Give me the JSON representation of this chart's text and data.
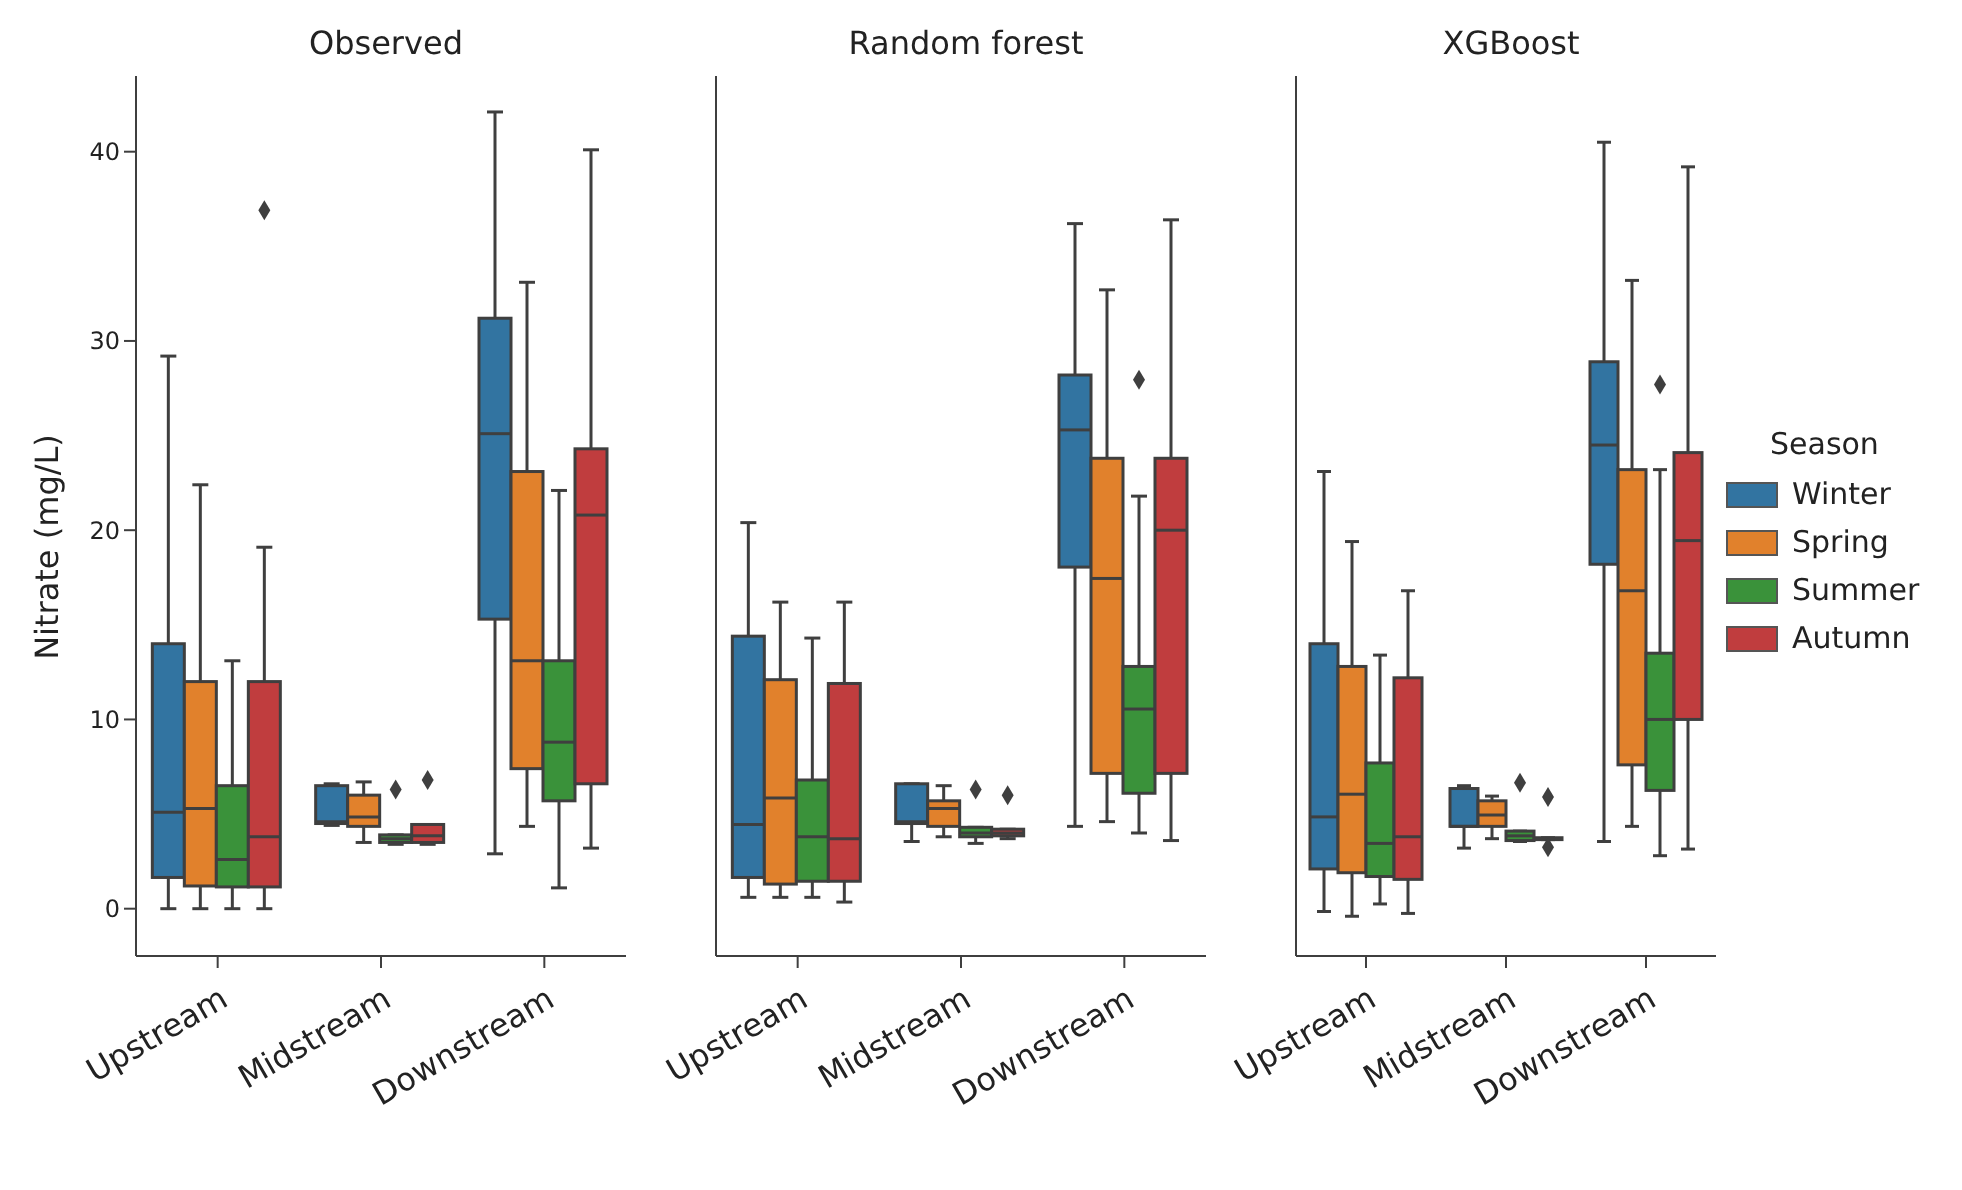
{
  "chart_data": [
    {
      "type": "box",
      "title": "Observed",
      "ylabel": "Nitrate (mg/L)",
      "categories": [
        "Upstream",
        "Midstream",
        "Downstream"
      ],
      "ylim": [
        -2.5,
        44
      ],
      "yticks": [
        0,
        10,
        20,
        30,
        40
      ],
      "series": [
        {
          "color": "#3274a1",
          "boxes": [
            {
              "low": 0,
              "q1": 1.65,
              "median": 5.1,
              "q3": 14,
              "high": 29.2
            },
            {
              "low": 4.4,
              "q1": 4.5,
              "median": 4.6,
              "q3": 6.5,
              "high": 6.6
            },
            {
              "low": 2.9,
              "q1": 15.3,
              "median": 25.1,
              "q3": 31.2,
              "high": 42.1
            }
          ]
        },
        {
          "color": "#e1812c",
          "boxes": [
            {
              "low": 0,
              "q1": 1.2,
              "median": 5.3,
              "q3": 12,
              "high": 22.4
            },
            {
              "low": 3.5,
              "q1": 4.35,
              "median": 4.85,
              "q3": 6,
              "high": 6.7
            },
            {
              "low": 4.35,
              "q1": 7.4,
              "median": 13.1,
              "q3": 23.1,
              "high": 33.1
            }
          ]
        },
        {
          "color": "#3a923a",
          "boxes": [
            {
              "low": 0,
              "q1": 1.15,
              "median": 2.6,
              "q3": 6.5,
              "high": 13.1
            },
            {
              "low": 3.4,
              "q1": 3.5,
              "median": 3.7,
              "q3": 3.9,
              "high": 3.9,
              "outliers": [
                6.3
              ]
            },
            {
              "low": 1.1,
              "q1": 5.7,
              "median": 8.8,
              "q3": 13.1,
              "high": 22.1
            }
          ]
        },
        {
          "color": "#c03d3e",
          "boxes": [
            {
              "low": 0,
              "q1": 1.15,
              "median": 3.8,
              "q3": 12,
              "high": 19.1,
              "outliers": [
                36.9
              ]
            },
            {
              "low": 3.4,
              "q1": 3.5,
              "median": 3.85,
              "q3": 4.45,
              "high": 4.45,
              "outliers": [
                6.8
              ]
            },
            {
              "low": 3.2,
              "q1": 6.6,
              "median": 20.8,
              "q3": 24.3,
              "high": 40.1
            }
          ]
        }
      ]
    },
    {
      "type": "box",
      "title": "Random forest",
      "categories": [
        "Upstream",
        "Midstream",
        "Downstream"
      ],
      "ylim": [
        -2.5,
        44
      ],
      "yticks": [
        0,
        10,
        20,
        30,
        40
      ],
      "tick_labels": "x",
      "series": [
        {
          "color": "#3274a1",
          "boxes": [
            {
              "low": 0.6,
              "q1": 1.65,
              "median": 4.45,
              "q3": 14.4,
              "high": 20.4
            },
            {
              "low": 3.55,
              "q1": 4.5,
              "median": 4.6,
              "q3": 6.6,
              "high": 6.6
            },
            {
              "low": 4.35,
              "q1": 18.05,
              "median": 25.3,
              "q3": 28.2,
              "high": 36.2
            }
          ]
        },
        {
          "color": "#e1812c",
          "boxes": [
            {
              "low": 0.6,
              "q1": 1.3,
              "median": 5.85,
              "q3": 12.1,
              "high": 16.2
            },
            {
              "low": 3.8,
              "q1": 4.35,
              "median": 5.3,
              "q3": 5.7,
              "high": 6.5
            },
            {
              "low": 4.6,
              "q1": 7.15,
              "median": 17.45,
              "q3": 23.8,
              "high": 32.7
            }
          ]
        },
        {
          "color": "#3a923a",
          "boxes": [
            {
              "low": 0.6,
              "q1": 1.45,
              "median": 3.8,
              "q3": 6.8,
              "high": 14.3
            },
            {
              "low": 3.45,
              "q1": 3.8,
              "median": 4,
              "q3": 4.3,
              "high": 4.3,
              "outliers": [
                6.3
              ]
            },
            {
              "low": 4,
              "q1": 6.1,
              "median": 10.55,
              "q3": 12.8,
              "high": 21.8,
              "outliers": [
                27.95
              ]
            }
          ]
        },
        {
          "color": "#c03d3e",
          "boxes": [
            {
              "low": 0.35,
              "q1": 1.45,
              "median": 3.7,
              "q3": 11.9,
              "high": 16.2
            },
            {
              "low": 3.7,
              "q1": 3.85,
              "median": 4,
              "q3": 4.2,
              "high": 4.2,
              "outliers": [
                6
              ]
            },
            {
              "low": 3.6,
              "q1": 7.15,
              "median": 20,
              "q3": 23.8,
              "high": 36.4
            }
          ]
        }
      ]
    },
    {
      "type": "box",
      "title": "XGBoost",
      "categories": [
        "Upstream",
        "Midstream",
        "Downstream"
      ],
      "ylim": [
        -2.5,
        44
      ],
      "yticks": [
        0,
        10,
        20,
        30,
        40
      ],
      "tick_labels": "x",
      "legend": "right",
      "legend_title": "Season",
      "series": [
        {
          "name": "Winter",
          "color": "#3274a1",
          "boxes": [
            {
              "low": -0.15,
              "q1": 2.1,
              "median": 4.85,
              "q3": 14,
              "high": 23.1
            },
            {
              "low": 3.2,
              "q1": 4.35,
              "median": 4.35,
              "q3": 6.35,
              "high": 6.5
            },
            {
              "low": 3.55,
              "q1": 18.2,
              "median": 24.5,
              "q3": 28.9,
              "high": 40.5
            }
          ]
        },
        {
          "name": "Spring",
          "color": "#e1812c",
          "boxes": [
            {
              "low": -0.4,
              "q1": 1.9,
              "median": 6.05,
              "q3": 12.8,
              "high": 19.4
            },
            {
              "low": 3.7,
              "q1": 4.35,
              "median": 4.95,
              "q3": 5.7,
              "high": 5.95
            },
            {
              "low": 4.35,
              "q1": 7.6,
              "median": 16.8,
              "q3": 23.2,
              "high": 33.2
            }
          ]
        },
        {
          "name": "Summer",
          "color": "#3a923a",
          "boxes": [
            {
              "low": 0.25,
              "q1": 1.7,
              "median": 3.45,
              "q3": 7.7,
              "high": 13.4
            },
            {
              "low": 3.55,
              "q1": 3.6,
              "median": 3.85,
              "q3": 4.1,
              "high": 4.1,
              "outliers": [
                6.65
              ]
            },
            {
              "low": 2.8,
              "q1": 6.25,
              "median": 10,
              "q3": 13.5,
              "high": 23.2,
              "outliers": [
                27.7
              ]
            }
          ]
        },
        {
          "name": "Autumn",
          "color": "#c03d3e",
          "boxes": [
            {
              "low": -0.25,
              "q1": 1.55,
              "median": 3.8,
              "q3": 12.2,
              "high": 16.8
            },
            {
              "low": 3.65,
              "q1": 3.65,
              "median": 3.7,
              "q3": 3.75,
              "high": 3.75,
              "outliers": [
                5.9,
                3.25
              ]
            },
            {
              "low": 3.15,
              "q1": 10,
              "median": 19.45,
              "q3": 24.1,
              "high": 39.2
            }
          ]
        }
      ]
    }
  ]
}
